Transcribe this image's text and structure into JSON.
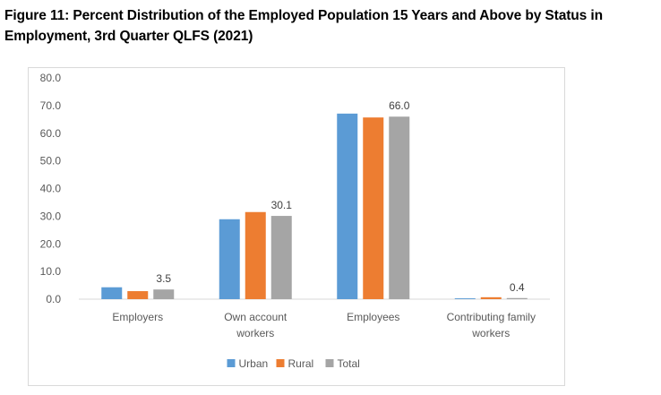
{
  "title": "Figure 11: Percent Distribution of the Employed Population 15 Years and Above by Status in Employment, 3rd Quarter QLFS (2021)",
  "chart_data": {
    "type": "bar",
    "title": "Figure 11: Percent Distribution of the Employed Population 15 Years and Above by Status in Employment, 3rd Quarter QLFS (2021)",
    "categories": [
      [
        "Employers"
      ],
      [
        "Own account",
        "workers"
      ],
      [
        "Employees"
      ],
      [
        "Contributing family",
        "workers"
      ]
    ],
    "series": [
      {
        "name": "Urban",
        "color": "#5B9BD5",
        "values": [
          4.3,
          28.9,
          67.1,
          0.3
        ]
      },
      {
        "name": "Rural",
        "color": "#ED7D31",
        "values": [
          2.9,
          31.5,
          65.7,
          0.7
        ]
      },
      {
        "name": "Total",
        "color": "#A5A5A5",
        "values": [
          3.5,
          30.1,
          66.0,
          0.4
        ],
        "labeled": true
      }
    ],
    "data_labels": [
      "3.5",
      "30.1",
      "66.0",
      "0.4"
    ],
    "yticks": [
      "0.0",
      "10.0",
      "20.0",
      "30.0",
      "40.0",
      "50.0",
      "60.0",
      "70.0",
      "80.0"
    ],
    "ylim": [
      0,
      80
    ],
    "xlabel": "",
    "ylabel": "",
    "grid": false,
    "legend_position": "bottom"
  }
}
